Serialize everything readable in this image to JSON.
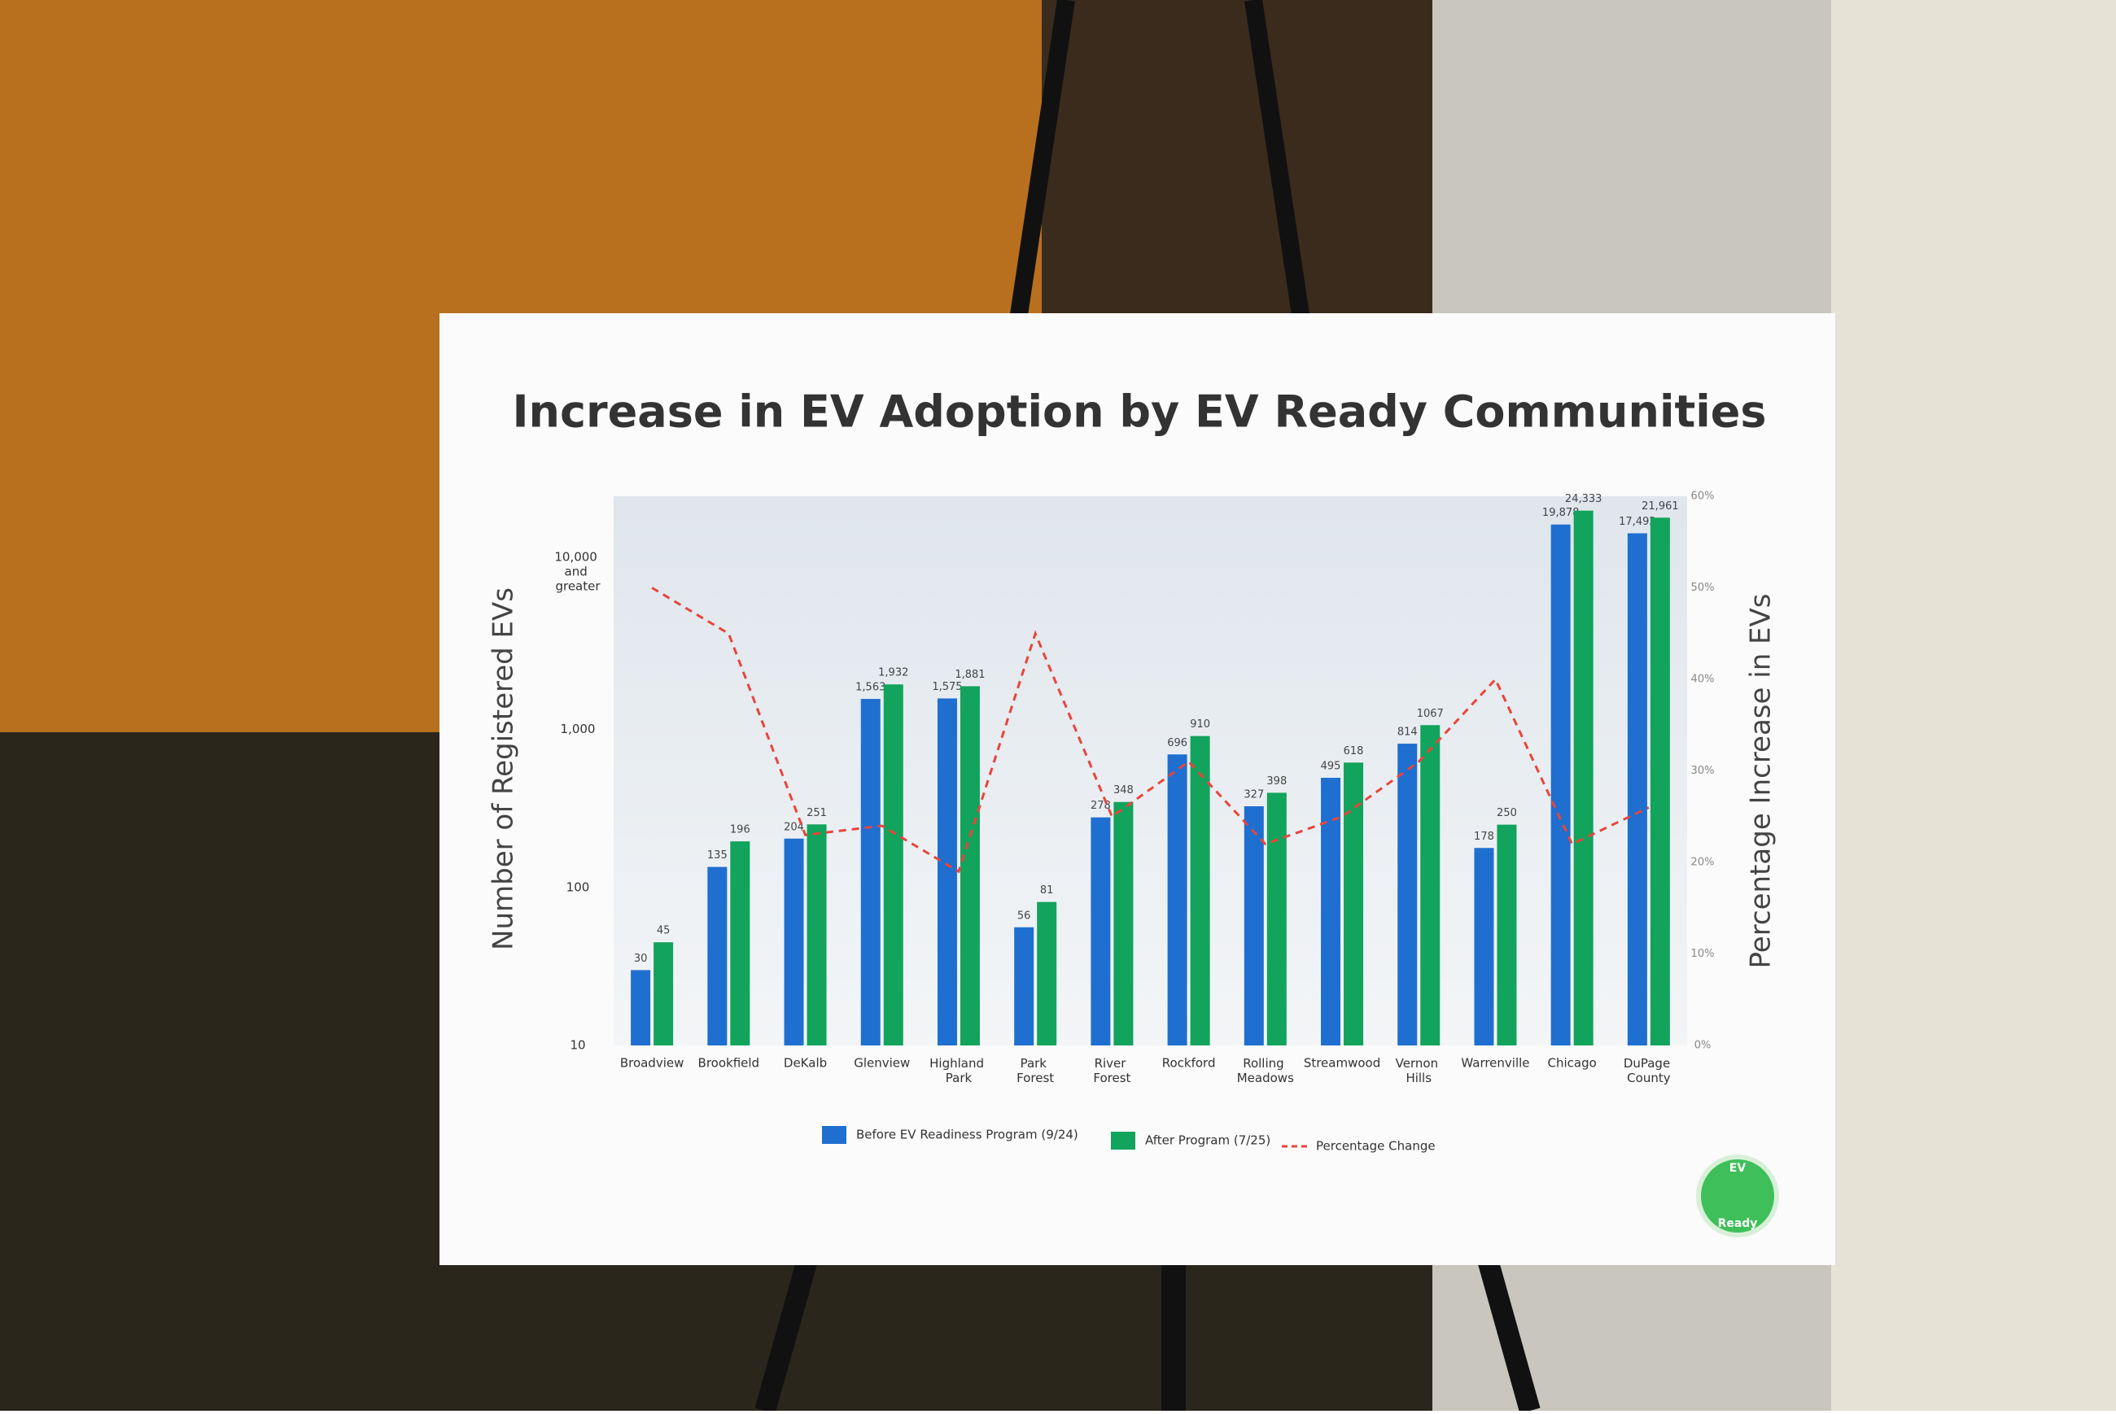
{
  "chart_data": {
    "type": "bar",
    "title": "Increase in EV Adoption by EV Ready Communities",
    "y_label": "Number of Registered EVs",
    "y2_label": "Percentage Increase in EVs",
    "categories": [
      "Broadview",
      "Brookfield",
      "DeKalb",
      "Glenview",
      "Highland Park",
      "Park Forest",
      "River Forest",
      "Rockford",
      "Rolling Meadows",
      "Streamwood",
      "Vernon Hills",
      "Warrenville",
      "Chicago",
      "DuPage County"
    ],
    "series": [
      {
        "name": "Before EV Readiness Program (9/24)",
        "color": "#1f6fd0",
        "values": [
          30,
          135,
          204,
          1563,
          1575,
          56,
          278,
          696,
          327,
          495,
          814,
          178,
          19878,
          17492
        ],
        "value_labels": [
          "30",
          "135",
          "204",
          "1,563",
          "1,575",
          "56",
          "278",
          "696",
          "327",
          "495",
          "814",
          "178",
          "19,878",
          "17,492"
        ]
      },
      {
        "name": "After Program (7/25)",
        "color": "#12a35c",
        "values": [
          45,
          196,
          251,
          1932,
          1881,
          81,
          348,
          910,
          398,
          618,
          1067,
          250,
          24333,
          21961
        ],
        "value_labels": [
          "45",
          "196",
          "251",
          "1,932",
          "1,881",
          "81",
          "348",
          "910",
          "398",
          "618",
          "1067",
          "250",
          "24,333",
          "21,961"
        ]
      },
      {
        "name": "Percentage Change",
        "color": "#e8453c",
        "type": "line",
        "dash": true,
        "axis": "y2",
        "values": [
          50,
          45,
          23,
          24,
          19,
          45,
          25,
          31,
          22,
          25,
          31,
          40,
          22,
          26
        ]
      }
    ],
    "log_scale": true,
    "grid": false,
    "ylim": [
      10,
      30000
    ],
    "yticks": [
      10,
      100,
      {
        "value": 1000,
        "label": "1,000"
      },
      {
        "value": 10000,
        "label": "10,000 and greater"
      }
    ],
    "y2lim": [
      0,
      60
    ],
    "y2ticks": [
      {
        "value": 0,
        "label": "0%"
      },
      {
        "value": 10,
        "label": "10%"
      },
      {
        "value": 20,
        "label": "20%"
      },
      {
        "value": 30,
        "label": "30%"
      },
      {
        "value": 40,
        "label": "40%"
      },
      {
        "value": 50,
        "label": "50%"
      },
      {
        "value": 60,
        "label": "60%"
      }
    ],
    "legend": "bottom"
  },
  "logo": {
    "top": "EV",
    "bottom": "Ready"
  }
}
